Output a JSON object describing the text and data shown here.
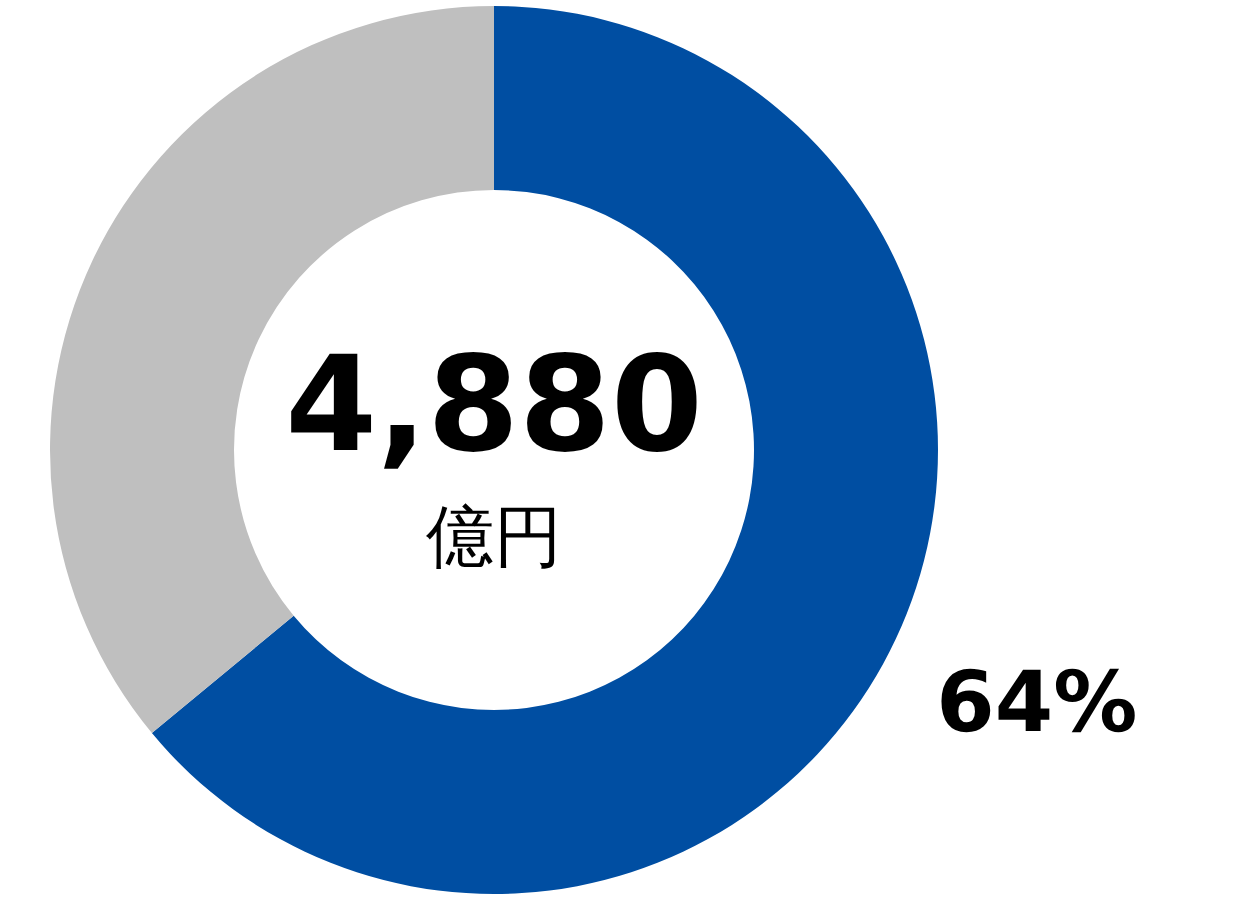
{
  "chart_data": {
    "type": "donut",
    "categories": [
      null,
      null
    ],
    "values": [
      64,
      36
    ],
    "colors": [
      "#004ea2",
      "#bfbfbf"
    ],
    "value_labels": [
      "64%",
      null
    ],
    "annotations": [
      "4,880",
      "億円"
    ]
  }
}
